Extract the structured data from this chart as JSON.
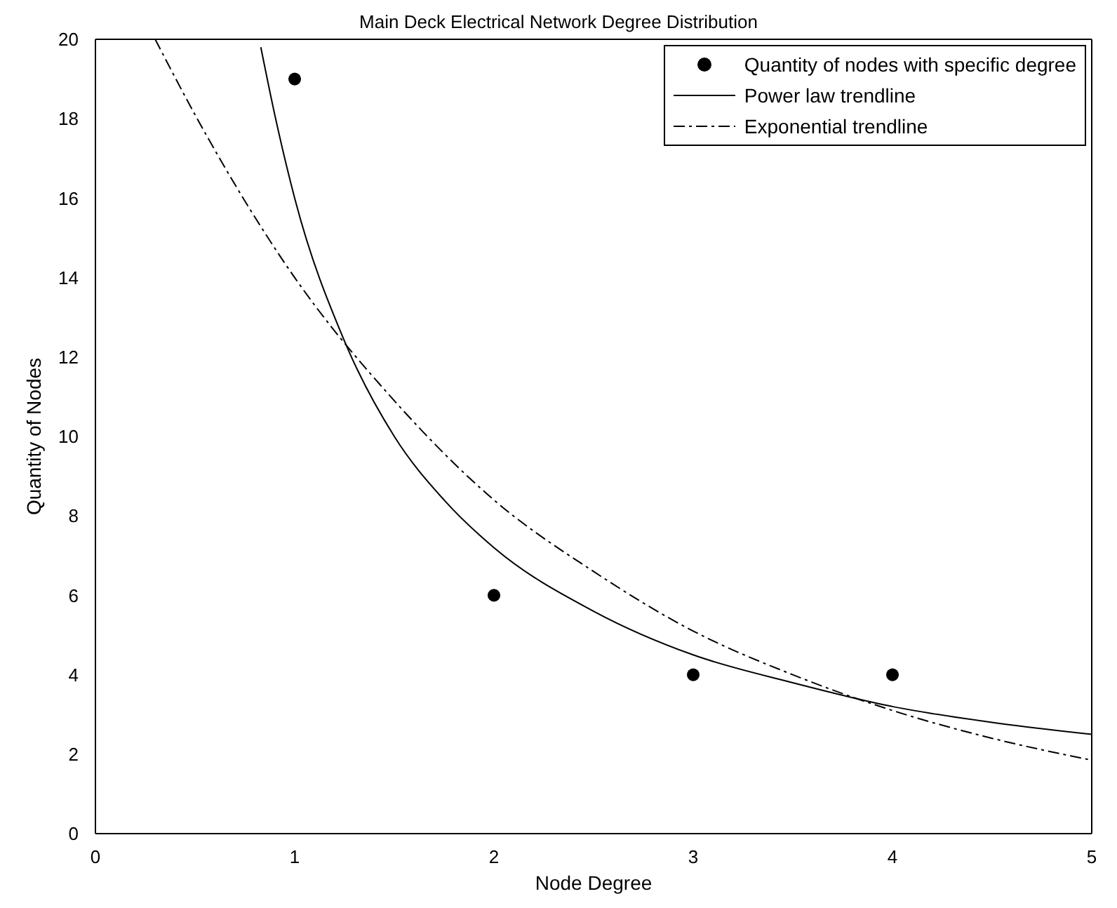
{
  "chart_data": {
    "type": "scatter",
    "title": "Main Deck Electrical Network Degree Distribution",
    "xlabel": "Node Degree",
    "ylabel": "Quantity of Nodes",
    "xlim": [
      0,
      5
    ],
    "xticks": [
      0,
      1,
      2,
      3,
      4,
      5
    ],
    "ylim": [
      0,
      20
    ],
    "yticks": [
      0,
      2,
      4,
      6,
      8,
      10,
      12,
      14,
      16,
      18,
      20
    ],
    "grid": false,
    "legend": "top right",
    "series": [
      {
        "name": "Quantity of nodes with specific degree",
        "marker": "circle",
        "color": "#000000",
        "x": [
          1,
          2,
          3,
          4
        ],
        "values": [
          19,
          6,
          4,
          4
        ]
      },
      {
        "name": "Power law trendline",
        "type": "line",
        "marker": "none",
        "line_style": "solid",
        "color": "#000000",
        "x": [
          0.83,
          0.9,
          1,
          1.25,
          1.5,
          1.75,
          2,
          2.5,
          3,
          3.5,
          4,
          4.5,
          5
        ],
        "values": [
          19.8,
          18.1,
          16.0,
          12.4,
          10.0,
          8.4,
          7.2,
          5.6,
          4.5,
          3.8,
          3.2,
          2.8,
          2.5
        ]
      },
      {
        "name": "Exponential trendline",
        "type": "line",
        "marker": "none",
        "line_style": "dashdot",
        "color": "#000000",
        "x": [
          0.3,
          0.5,
          1,
          1.5,
          2,
          2.5,
          3,
          3.5,
          4,
          4.5,
          5
        ],
        "values": [
          20.0,
          18.1,
          14.0,
          10.9,
          8.4,
          6.6,
          5.1,
          4.0,
          3.1,
          2.4,
          1.85
        ]
      }
    ]
  }
}
